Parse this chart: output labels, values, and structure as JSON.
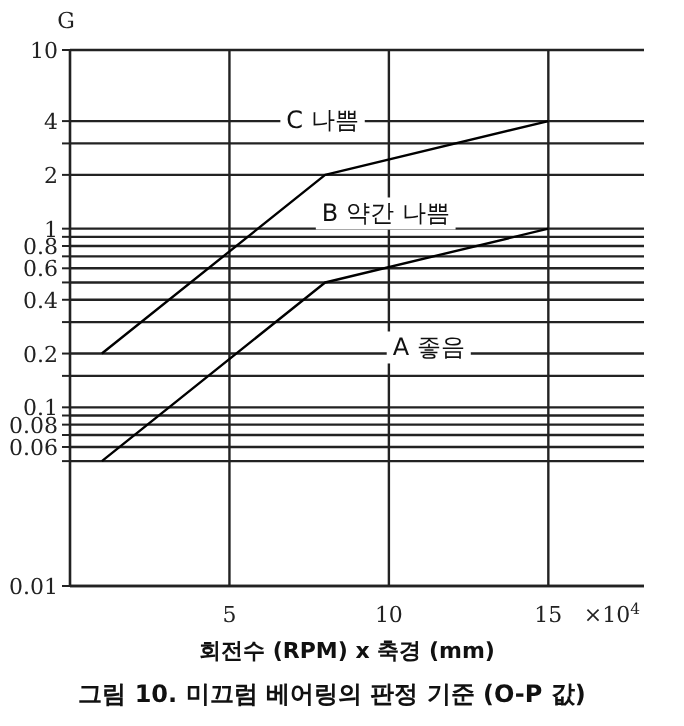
{
  "chart_data": {
    "type": "line",
    "title": "그림 10. 미끄럼 베어링의 판정 기준 (O-P 값)",
    "xlabel": "회전수 (RPM) x 축경 (mm)",
    "ylabel": "G",
    "x": [
      1,
      8,
      15
    ],
    "series": [
      {
        "color": "#000000",
        "values": [
          0.2,
          2,
          4
        ]
      },
      {
        "color": "#000000",
        "values": [
          0.05,
          0.5,
          1
        ]
      }
    ],
    "xlim": [
      0,
      18
    ],
    "xticks": [
      5,
      10,
      15
    ],
    "ylim": [
      0.01,
      10
    ],
    "yticks": [
      10,
      4,
      {
        "value": 3,
        "label": null
      },
      2,
      1,
      {
        "value": 0.9,
        "label": null
      },
      0.8,
      {
        "value": 0.7,
        "label": null
      },
      0.6,
      {
        "value": 0.5,
        "label": null
      },
      0.4,
      {
        "value": 0.3,
        "label": null
      },
      0.2,
      {
        "value": 0.15,
        "label": null
      },
      0.1,
      {
        "value": 0.09,
        "label": null
      },
      0.08,
      {
        "value": 0.07,
        "label": null
      },
      0.06,
      {
        "value": 0.05,
        "label": null
      },
      0.01
    ],
    "log": "y",
    "grid": true,
    "marker": "none",
    "line_style": "solid",
    "annotations": [
      "C 나쁨",
      "B 약간 나쁨",
      "A 좋음",
      "×10$^{4}$"
    ]
  }
}
